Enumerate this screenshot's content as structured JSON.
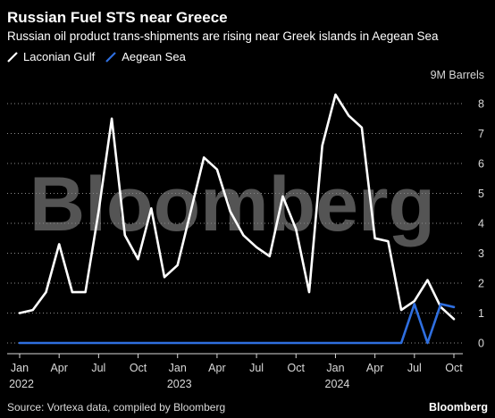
{
  "header": {
    "title": "Russian Fuel STS near Greece",
    "subtitle": "Russian oil product trans-shipments are rising near Greek islands in Aegean Sea"
  },
  "footer": {
    "source": "Source: Vortexa data, compiled by Bloomberg",
    "brand": "Bloomberg"
  },
  "watermark": "Bloomberg",
  "chart_data": {
    "type": "line",
    "unit_label": "9M Barrels",
    "ylim": [
      0,
      9
    ],
    "y_ticks": [
      0,
      1,
      2,
      3,
      4,
      5,
      6,
      7,
      8
    ],
    "grid": true,
    "x_ticks": [
      {
        "month": "Jan",
        "year": "2022"
      },
      {
        "month": "Apr",
        "year": ""
      },
      {
        "month": "Jul",
        "year": ""
      },
      {
        "month": "Oct",
        "year": ""
      },
      {
        "month": "Jan",
        "year": "2023"
      },
      {
        "month": "Apr",
        "year": ""
      },
      {
        "month": "Jul",
        "year": ""
      },
      {
        "month": "Oct",
        "year": ""
      },
      {
        "month": "Jan",
        "year": "2024"
      },
      {
        "month": "Apr",
        "year": ""
      },
      {
        "month": "Jul",
        "year": ""
      },
      {
        "month": "Oct",
        "year": ""
      }
    ],
    "x": [
      "2022-01",
      "2022-02",
      "2022-03",
      "2022-04",
      "2022-05",
      "2022-06",
      "2022-07",
      "2022-08",
      "2022-09",
      "2022-10",
      "2022-11",
      "2022-12",
      "2023-01",
      "2023-02",
      "2023-03",
      "2023-04",
      "2023-05",
      "2023-06",
      "2023-07",
      "2023-08",
      "2023-09",
      "2023-10",
      "2023-11",
      "2023-12",
      "2024-01",
      "2024-02",
      "2024-03",
      "2024-04",
      "2024-05",
      "2024-06",
      "2024-07",
      "2024-08",
      "2024-09",
      "2024-10"
    ],
    "series": [
      {
        "name": "Laconian Gulf",
        "color": "#ffffff",
        "values": [
          1.0,
          1.1,
          1.7,
          3.3,
          1.7,
          1.7,
          4.4,
          7.5,
          3.6,
          2.8,
          4.5,
          2.2,
          2.6,
          4.4,
          6.2,
          5.8,
          4.4,
          3.6,
          3.2,
          2.9,
          4.9,
          3.8,
          1.7,
          6.6,
          8.3,
          7.6,
          7.2,
          3.5,
          3.4,
          1.1,
          1.4,
          2.1,
          1.2,
          0.8
        ]
      },
      {
        "name": "Aegean Sea",
        "color": "#2f6fe0",
        "values": [
          0,
          0,
          0,
          0,
          0,
          0,
          0,
          0,
          0,
          0,
          0,
          0,
          0,
          0,
          0,
          0,
          0,
          0,
          0,
          0,
          0,
          0,
          0,
          0,
          0,
          0,
          0,
          0,
          0,
          0,
          1.3,
          0,
          1.3,
          1.2
        ]
      }
    ]
  }
}
